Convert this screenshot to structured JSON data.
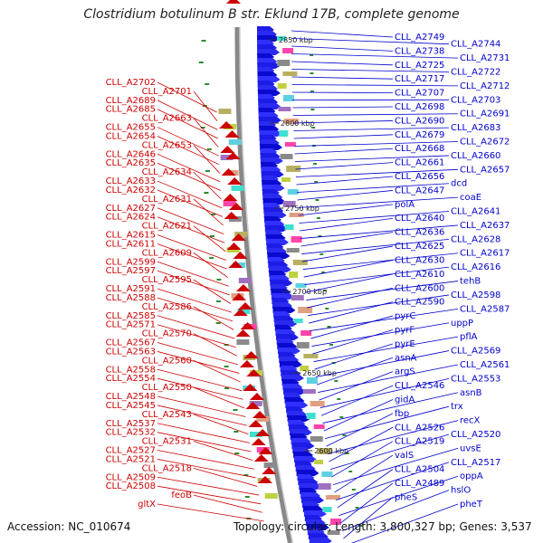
{
  "title": "Clostridium botulinum B str. Eklund 17B, complete genome",
  "footer": {
    "accession": "Accession: NC_010674",
    "topology": "Topology: circular; Length: 3,800,327 bp; Genes: 3,537"
  },
  "scale_ticks": [
    "2850 kbp",
    "2800 kbp",
    "2750 kbp",
    "2700 kbp",
    "2650 kbp",
    "2600 kbp"
  ],
  "left_labels": [
    "CLL_A2702",
    "CLL_A2701",
    "CLL_A2689",
    "CLL_A2685",
    "CLL_A2663",
    "CLL_A2655",
    "CLL_A2654",
    "CLL_A2653",
    "CLL_A2646",
    "CLL_A2635",
    "CLL_A2634",
    "CLL_A2633",
    "CLL_A2632",
    "CLL_A2631",
    "CLL_A2627",
    "CLL_A2624",
    "CLL_A2621",
    "CLL_A2615",
    "CLL_A2611",
    "CLL_A2609",
    "CLL_A2599",
    "CLL_A2597",
    "CLL_A2595",
    "CLL_A2591",
    "CLL_A2588",
    "CLL_A2586",
    "CLL_A2585",
    "CLL_A2571",
    "CLL_A2570",
    "CLL_A2567",
    "CLL_A2563",
    "CLL_A2560",
    "CLL_A2558",
    "CLL_A2554",
    "CLL_A2550",
    "CLL_A2548",
    "CLL_A2545",
    "CLL_A2543",
    "CLL_A2537",
    "CLL_A2532",
    "CLL_A2531",
    "CLL_A2527",
    "CLL_A2521",
    "CLL_A2518",
    "CLL_A2509",
    "CLL_A2508",
    "feoB",
    "gltX"
  ],
  "right_labels": [
    "CLL_A2749",
    "CLL_A2744",
    "CLL_A2738",
    "CLL_A2731",
    "CLL_A2725",
    "CLL_A2722",
    "CLL_A2717",
    "CLL_A2712",
    "CLL_A2707",
    "CLL_A2703",
    "CLL_A2698",
    "CLL_A2691",
    "CLL_A2690",
    "CLL_A2683",
    "CLL_A2679",
    "CLL_A2672",
    "CLL_A2668",
    "CLL_A2660",
    "CLL_A2661",
    "CLL_A2657",
    "CLL_A2656",
    "dcd",
    "CLL_A2647",
    "coaE",
    "polA",
    "CLL_A2641",
    "CLL_A2640",
    "CLL_A2637",
    "CLL_A2636",
    "CLL_A2628",
    "CLL_A2625",
    "CLL_A2617",
    "CLL_A2630",
    "CLL_A2616",
    "CLL_A2610",
    "tehB",
    "CLL_A2600",
    "CLL_A2598",
    "CLL_A2590",
    "CLL_A2587",
    "pyrC",
    "uppP",
    "pyrF",
    "pflA",
    "pyrE",
    "CLL_A2569",
    "asnA",
    "CLL_A2561",
    "argS",
    "CLL_A2553",
    "CLL_A2546",
    "asnB",
    "gidA",
    "trx",
    "fbp",
    "recX",
    "CLL_A2526",
    "CLL_A2520",
    "CLL_A2519",
    "uvsE",
    "valS",
    "CLL_A2517",
    "CLL_A2504",
    "oppA",
    "CLL_A2489",
    "hslO",
    "pheS",
    "pheT"
  ],
  "colors": {
    "forward": "#0000cc",
    "reverse": "#cc0000",
    "backbone": "#888888",
    "rna_marker": "#2e8b2e"
  }
}
